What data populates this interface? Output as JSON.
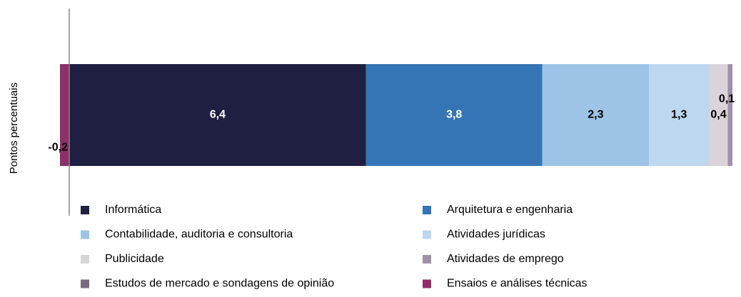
{
  "chart_data": {
    "type": "stacked_bar_horizontal",
    "y_label": "Pontos percentuais",
    "xlim": [
      -0.2,
      14.3
    ],
    "series": [
      {
        "name": "Informática",
        "color": "#1f2041",
        "values": [
          6.4
        ],
        "value_labels": [
          "6,4"
        ]
      },
      {
        "name": "Arquitetura e engenharia",
        "color": "#3575b5",
        "values": [
          3.8
        ],
        "value_labels": [
          "3,8"
        ]
      },
      {
        "name": "Contabilidade, auditoria e consultoria",
        "color": "#9dc3e6",
        "values": [
          2.3
        ],
        "value_labels": [
          "2,3"
        ]
      },
      {
        "name": "Atividades jurídicas",
        "color": "#bdd7ee",
        "values": [
          1.3
        ],
        "value_labels": [
          "1,3"
        ]
      },
      {
        "name": "Publicidade",
        "color": "#d9d3da",
        "values": [
          0.4
        ],
        "value_labels": [
          "0,4"
        ]
      },
      {
        "name": "Atividades de emprego",
        "color": "#a090a8",
        "values": [
          0.1
        ],
        "value_labels": [
          "0,1"
        ]
      },
      {
        "name": "Estudos de mercado e sondagens de opinião",
        "color": "#7a6a80",
        "values": [
          0
        ],
        "value_labels": [
          null
        ]
      },
      {
        "name": "Ensaios e análises técnicas",
        "color": "#8e2e6a",
        "values": [
          -0.2
        ],
        "value_labels": [
          "-0,2"
        ]
      }
    ]
  }
}
